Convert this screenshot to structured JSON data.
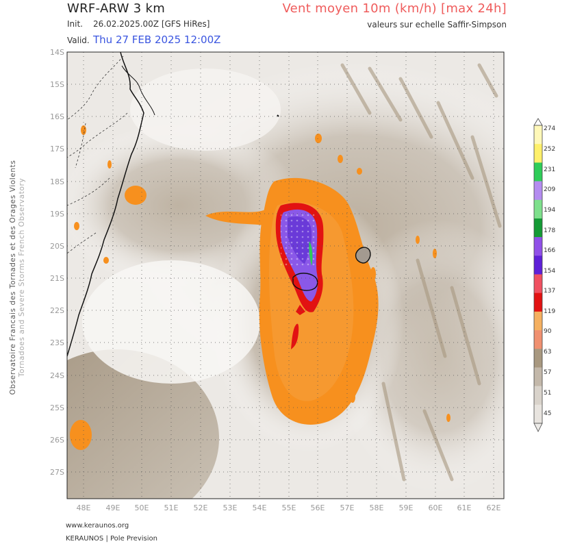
{
  "header": {
    "model": "WRF-ARW 3 km",
    "init_label": "Init.",
    "init_value": "26.02.2025.00Z [GFS HiRes]",
    "valid_label": "Valid.",
    "valid_value": "Thu 27 FEB 2025 12:00Z",
    "product": "Vent moyen 10m (km/h) [max 24h]",
    "scale_note": "valeurs sur echelle Saffir-Simpson"
  },
  "side_text": {
    "line1": "Observatoire Francais des Tornades et des Orages Violents",
    "line2": "Tornadoes and Severe Storms French Observatory"
  },
  "footer": {
    "url": "www.keraunos.org",
    "brand": "KERAUNOS | Pole Prevision"
  },
  "map": {
    "lat_labels": [
      "14S",
      "15S",
      "16S",
      "17S",
      "18S",
      "19S",
      "20S",
      "21S",
      "22S",
      "23S",
      "24S",
      "25S",
      "26S",
      "27S"
    ],
    "lon_labels": [
      "48E",
      "49E",
      "50E",
      "51E",
      "52E",
      "53E",
      "54E",
      "55E",
      "56E",
      "57E",
      "58E",
      "59E",
      "60E",
      "61E",
      "62E"
    ],
    "grid": "dotted"
  },
  "legend": {
    "ticks": [
      "274",
      "252",
      "231",
      "209",
      "194",
      "178",
      "166",
      "154",
      "137",
      "119",
      "90",
      "63",
      "57",
      "51",
      "45"
    ],
    "colors": [
      "#ffffff",
      "#f7b8dc",
      "#f291c8",
      "#fff8b8",
      "#fff06a",
      "#e6d22e",
      "#7ee08c",
      "#2ecc58",
      "#149a35",
      "#b48cf0",
      "#9050e8",
      "#5e20d8",
      "#f7a0a8",
      "#f05060",
      "#e21212",
      "#f09070",
      "#f5b060",
      "#f7a020",
      "#a89880",
      "#c3b8aa",
      "#d9d3cb",
      "#e8e4df"
    ],
    "tick_colors": [
      "#fff8b8",
      "#fff06a",
      "#2ecc58",
      "#b48cf0",
      "#7ee08c",
      "#149a35",
      "#9050e8",
      "#5e20d8",
      "#f05060",
      "#e21212",
      "#f5b060",
      "#f09070",
      "#a89880",
      "#c3b8aa",
      "#d9d3cb",
      "#e8e4df"
    ]
  }
}
